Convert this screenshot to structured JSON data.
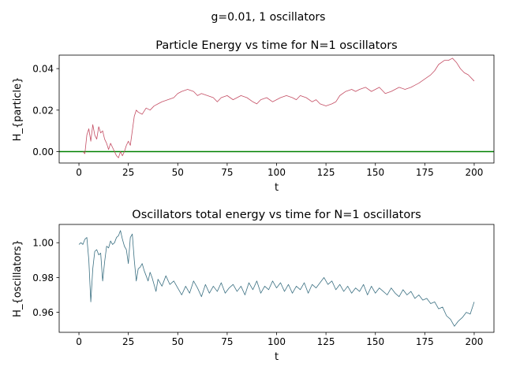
{
  "figure": {
    "suptitle": "g=0.01, 1 oscillators"
  },
  "chart_data": [
    {
      "type": "line",
      "title": "Particle Energy vs time for N=1 oscillators",
      "xlabel": "t",
      "ylabel": "H_{particle}",
      "xlim": [
        -10,
        210
      ],
      "ylim": [
        -0.0055,
        0.0465
      ],
      "xticks": [
        0,
        25,
        50,
        75,
        100,
        125,
        150,
        175,
        200
      ],
      "yticks": [
        0.0,
        0.02,
        0.04
      ],
      "ytick_labels": [
        "0.00",
        "0.02",
        "0.04"
      ],
      "grid": false,
      "reference_line": {
        "y": 0.0,
        "color": "#008000"
      },
      "series": [
        {
          "color": "#c44e64",
          "x": [
            2,
            3,
            4,
            5,
            6,
            7,
            8,
            9,
            10,
            11,
            12,
            13,
            14,
            15,
            16,
            17,
            18,
            19,
            20,
            21,
            22,
            23,
            24,
            25,
            26,
            27,
            28,
            29,
            30,
            32,
            34,
            36,
            38,
            40,
            42,
            45,
            48,
            50,
            52,
            55,
            58,
            60,
            62,
            65,
            68,
            70,
            72,
            75,
            78,
            80,
            82,
            85,
            88,
            90,
            92,
            95,
            98,
            100,
            102,
            105,
            108,
            110,
            112,
            115,
            118,
            120,
            122,
            125,
            128,
            130,
            132,
            135,
            138,
            140,
            142,
            145,
            148,
            150,
            152,
            155,
            158,
            160,
            162,
            165,
            168,
            170,
            172,
            175,
            178,
            180,
            182,
            185,
            187,
            189,
            191,
            193,
            195,
            197,
            199,
            200
          ],
          "y": [
            0.0,
            -0.001,
            0.008,
            0.011,
            0.005,
            0.013,
            0.008,
            0.006,
            0.012,
            0.009,
            0.01,
            0.006,
            0.004,
            0.001,
            0.004,
            0.002,
            0.0,
            -0.002,
            -0.003,
            0.0,
            -0.002,
            0.0,
            0.003,
            0.005,
            0.003,
            0.01,
            0.017,
            0.02,
            0.019,
            0.018,
            0.021,
            0.02,
            0.022,
            0.023,
            0.024,
            0.025,
            0.026,
            0.028,
            0.029,
            0.03,
            0.029,
            0.027,
            0.028,
            0.027,
            0.026,
            0.024,
            0.026,
            0.027,
            0.025,
            0.026,
            0.027,
            0.026,
            0.024,
            0.023,
            0.025,
            0.026,
            0.024,
            0.025,
            0.026,
            0.027,
            0.026,
            0.025,
            0.027,
            0.026,
            0.024,
            0.025,
            0.023,
            0.022,
            0.023,
            0.024,
            0.027,
            0.029,
            0.03,
            0.029,
            0.03,
            0.031,
            0.029,
            0.03,
            0.031,
            0.028,
            0.029,
            0.03,
            0.031,
            0.03,
            0.031,
            0.032,
            0.033,
            0.035,
            0.037,
            0.039,
            0.042,
            0.044,
            0.044,
            0.045,
            0.043,
            0.04,
            0.038,
            0.037,
            0.035,
            0.034
          ]
        }
      ]
    },
    {
      "type": "line",
      "title": "Oscillators total energy vs time for N=1 oscillators",
      "xlabel": "t",
      "ylabel": "H_{oscillators}",
      "xlim": [
        -10,
        210
      ],
      "ylim": [
        0.9485,
        1.0105
      ],
      "xticks": [
        0,
        25,
        50,
        75,
        100,
        125,
        150,
        175,
        200
      ],
      "yticks": [
        0.96,
        0.98,
        1.0
      ],
      "ytick_labels": [
        "0.96",
        "0.98",
        "1.00"
      ],
      "grid": false,
      "series": [
        {
          "color": "#3b7082",
          "x": [
            0,
            1,
            2,
            3,
            4,
            5,
            6,
            7,
            8,
            9,
            10,
            11,
            12,
            13,
            14,
            15,
            16,
            17,
            18,
            19,
            20,
            21,
            22,
            23,
            24,
            25,
            26,
            27,
            28,
            29,
            30,
            31,
            32,
            33,
            34,
            35,
            36,
            37,
            38,
            39,
            40,
            42,
            44,
            46,
            48,
            50,
            52,
            54,
            56,
            58,
            60,
            62,
            64,
            66,
            68,
            70,
            72,
            74,
            76,
            78,
            80,
            82,
            84,
            86,
            88,
            90,
            92,
            94,
            96,
            98,
            100,
            102,
            104,
            106,
            108,
            110,
            112,
            114,
            116,
            118,
            120,
            122,
            124,
            126,
            128,
            130,
            132,
            134,
            136,
            138,
            140,
            142,
            144,
            146,
            148,
            150,
            152,
            154,
            156,
            158,
            160,
            162,
            164,
            166,
            168,
            170,
            172,
            174,
            176,
            178,
            180,
            182,
            184,
            186,
            188,
            190,
            192,
            194,
            196,
            198,
            200
          ],
          "y": [
            0.999,
            1.0,
            0.999,
            1.002,
            1.003,
            0.99,
            0.966,
            0.985,
            0.995,
            0.996,
            0.993,
            0.994,
            0.978,
            0.989,
            0.998,
            0.997,
            1.001,
            0.999,
            1.0,
            1.003,
            1.004,
            1.007,
            1.002,
            0.998,
            0.996,
            0.988,
            1.003,
            1.005,
            0.99,
            0.978,
            0.985,
            0.986,
            0.988,
            0.984,
            0.981,
            0.978,
            0.983,
            0.98,
            0.976,
            0.972,
            0.979,
            0.975,
            0.981,
            0.976,
            0.978,
            0.974,
            0.97,
            0.975,
            0.971,
            0.978,
            0.974,
            0.969,
            0.976,
            0.971,
            0.975,
            0.972,
            0.977,
            0.971,
            0.974,
            0.976,
            0.972,
            0.975,
            0.97,
            0.977,
            0.973,
            0.978,
            0.971,
            0.975,
            0.973,
            0.978,
            0.974,
            0.977,
            0.972,
            0.976,
            0.971,
            0.975,
            0.973,
            0.977,
            0.971,
            0.976,
            0.974,
            0.977,
            0.98,
            0.976,
            0.978,
            0.973,
            0.976,
            0.972,
            0.975,
            0.971,
            0.974,
            0.972,
            0.976,
            0.97,
            0.975,
            0.971,
            0.974,
            0.972,
            0.97,
            0.974,
            0.971,
            0.969,
            0.973,
            0.97,
            0.972,
            0.968,
            0.97,
            0.967,
            0.968,
            0.965,
            0.966,
            0.962,
            0.963,
            0.958,
            0.956,
            0.952,
            0.955,
            0.957,
            0.96,
            0.959,
            0.966
          ]
        }
      ]
    }
  ]
}
